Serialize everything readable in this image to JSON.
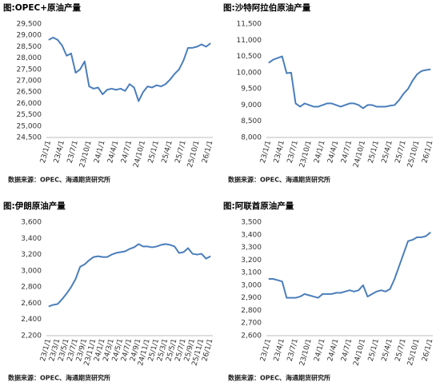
{
  "chart_data": [
    {
      "type": "line",
      "title": "图:OPEC+原油产量",
      "source": "数据来源：OPEC、海通期货研究所",
      "categories": [
        "23/1/1",
        null,
        null,
        "23/4/1",
        null,
        null,
        "23/7/1",
        null,
        null,
        "23/10/1",
        null,
        null,
        "24/1/1",
        null,
        null,
        "24/4/1",
        null,
        null,
        "24/7/1",
        null,
        null,
        "24/10/1",
        null,
        null,
        "25/1/1",
        null,
        null,
        "25/4/1",
        null,
        null,
        "25/7/1",
        null,
        null,
        "25/10/1",
        null,
        null,
        "26/1/1"
      ],
      "values": [
        28800,
        28900,
        28800,
        28550,
        28100,
        28200,
        27350,
        27500,
        27850,
        26750,
        26650,
        26700,
        26400,
        26600,
        26650,
        26600,
        26650,
        26550,
        26850,
        26700,
        26100,
        26500,
        26750,
        26700,
        26800,
        26750,
        26850,
        27050,
        27300,
        27500,
        27900,
        28450,
        28450,
        28500,
        28600,
        28500,
        28650
      ],
      "color": "#4a7ebb",
      "grid": false,
      "ylim": [
        24500,
        29500
      ],
      "yticks": [
        {
          "value": 24500,
          "label": "24,500"
        },
        {
          "value": 25000,
          "label": "25,000"
        },
        {
          "value": 25500,
          "label": "25,500"
        },
        {
          "value": 26000,
          "label": "26,000"
        },
        {
          "value": 26500,
          "label": "26,500"
        },
        {
          "value": 27000,
          "label": "27,000"
        },
        {
          "value": 27500,
          "label": "27,500"
        },
        {
          "value": 28000,
          "label": "28,000"
        },
        {
          "value": 28500,
          "label": "28,500"
        },
        {
          "value": 29000,
          "label": "29,000"
        },
        {
          "value": 29500,
          "label": "29,500"
        }
      ]
    },
    {
      "type": "line",
      "title": "图:沙特阿拉伯原油产量",
      "source": "数据来源：OPEC、海通期货研究所",
      "categories": [
        "23/1/1",
        null,
        null,
        "23/4/1",
        null,
        null,
        "23/7/1",
        null,
        null,
        "23/10/1",
        null,
        null,
        "24/1/1",
        null,
        null,
        "24/4/1",
        null,
        null,
        "24/7/1",
        null,
        null,
        "24/10/1",
        null,
        null,
        "25/1/1",
        null,
        null,
        "25/4/1",
        null,
        null,
        "25/7/1",
        null,
        null,
        "25/10/1",
        null,
        null,
        "26/1/1"
      ],
      "values": [
        10300,
        10400,
        10450,
        10500,
        9980,
        10000,
        9050,
        8950,
        9050,
        9000,
        8950,
        8950,
        9000,
        9050,
        9050,
        9000,
        8950,
        9000,
        9050,
        9050,
        9000,
        8900,
        9000,
        9000,
        8950,
        8950,
        8950,
        8980,
        9000,
        9150,
        9350,
        9500,
        9750,
        9950,
        10050,
        10080,
        10100
      ],
      "color": "#4a7ebb",
      "grid": false,
      "ylim": [
        8000,
        11500
      ],
      "yticks": [
        {
          "value": 8000,
          "label": "8,000"
        },
        {
          "value": 8500,
          "label": "8,500"
        },
        {
          "value": 9000,
          "label": "9,000"
        },
        {
          "value": 9500,
          "label": "9,500"
        },
        {
          "value": 10000,
          "label": "10,000"
        },
        {
          "value": 10500,
          "label": "10,500"
        },
        {
          "value": 11000,
          "label": "11,000"
        },
        {
          "value": 11500,
          "label": "11,500"
        }
      ]
    },
    {
      "type": "line",
      "title": "图:伊朗原油产量",
      "source": "数据来源：OPEC、海通期货研究所",
      "categories": [
        "23/1/1",
        null,
        "23/3/1",
        null,
        "23/5/1",
        null,
        "23/7/1",
        null,
        "23/9/1",
        null,
        "23/11/1",
        null,
        "24/1/1",
        null,
        "24/3/1",
        null,
        "24/5/1",
        null,
        "24/7/1",
        null,
        "24/9/1",
        null,
        "24/11/1",
        null,
        "25/1/1",
        null,
        "25/3/1",
        null,
        "25/5/1",
        null,
        "25/7/1",
        null,
        "25/9/1",
        null,
        "25/11/1",
        null,
        "26/1/1"
      ],
      "values": [
        2560,
        2580,
        2590,
        2650,
        2720,
        2800,
        2900,
        3050,
        3080,
        3130,
        3170,
        3180,
        3170,
        3170,
        3200,
        3220,
        3230,
        3240,
        3270,
        3290,
        3330,
        3300,
        3300,
        3290,
        3300,
        3320,
        3330,
        3320,
        3300,
        3220,
        3230,
        3280,
        3210,
        3200,
        3210,
        3150,
        3180
      ],
      "color": "#4a7ebb",
      "grid": false,
      "ylim": [
        2200,
        3600
      ],
      "yticks": [
        {
          "value": 2200,
          "label": "2,200"
        },
        {
          "value": 2400,
          "label": "2,400"
        },
        {
          "value": 2600,
          "label": "2,600"
        },
        {
          "value": 2800,
          "label": "2,800"
        },
        {
          "value": 3000,
          "label": "3,000"
        },
        {
          "value": 3200,
          "label": "3,200"
        },
        {
          "value": 3400,
          "label": "3,400"
        },
        {
          "value": 3600,
          "label": "3,600"
        }
      ]
    },
    {
      "type": "line",
      "title": "图:阿联酋原油产量",
      "source": "数据来源：OPEC、海通期货研究所",
      "categories": [
        "23/1/1",
        null,
        null,
        "23/4/1",
        null,
        null,
        "23/7/1",
        null,
        null,
        "23/10/1",
        null,
        null,
        "24/1/1",
        null,
        null,
        "24/4/1",
        null,
        null,
        "24/7/1",
        null,
        null,
        "24/10/1",
        null,
        null,
        "25/1/1",
        null,
        null,
        "25/4/1",
        null,
        null,
        "25/7/1",
        null,
        null,
        "25/10/1",
        null,
        null,
        "26/1/1"
      ],
      "values": [
        3050,
        3050,
        3040,
        3030,
        2900,
        2900,
        2900,
        2910,
        2930,
        2920,
        2910,
        2900,
        2930,
        2930,
        2930,
        2940,
        2940,
        2950,
        2960,
        2950,
        2960,
        3000,
        2910,
        2930,
        2950,
        2960,
        2950,
        2970,
        3050,
        3150,
        3250,
        3350,
        3360,
        3380,
        3380,
        3390,
        3420
      ],
      "color": "#4a7ebb",
      "grid": false,
      "ylim": [
        2600,
        3500
      ],
      "yticks": [
        {
          "value": 2600,
          "label": "2,600"
        },
        {
          "value": 2700,
          "label": "2,700"
        },
        {
          "value": 2800,
          "label": "2,800"
        },
        {
          "value": 2900,
          "label": "2,900"
        },
        {
          "value": 3000,
          "label": "3,000"
        },
        {
          "value": 3100,
          "label": "3,100"
        },
        {
          "value": 3200,
          "label": "3,200"
        },
        {
          "value": 3300,
          "label": "3,300"
        },
        {
          "value": 3400,
          "label": "3,400"
        },
        {
          "value": 3500,
          "label": "3,500"
        }
      ]
    }
  ]
}
